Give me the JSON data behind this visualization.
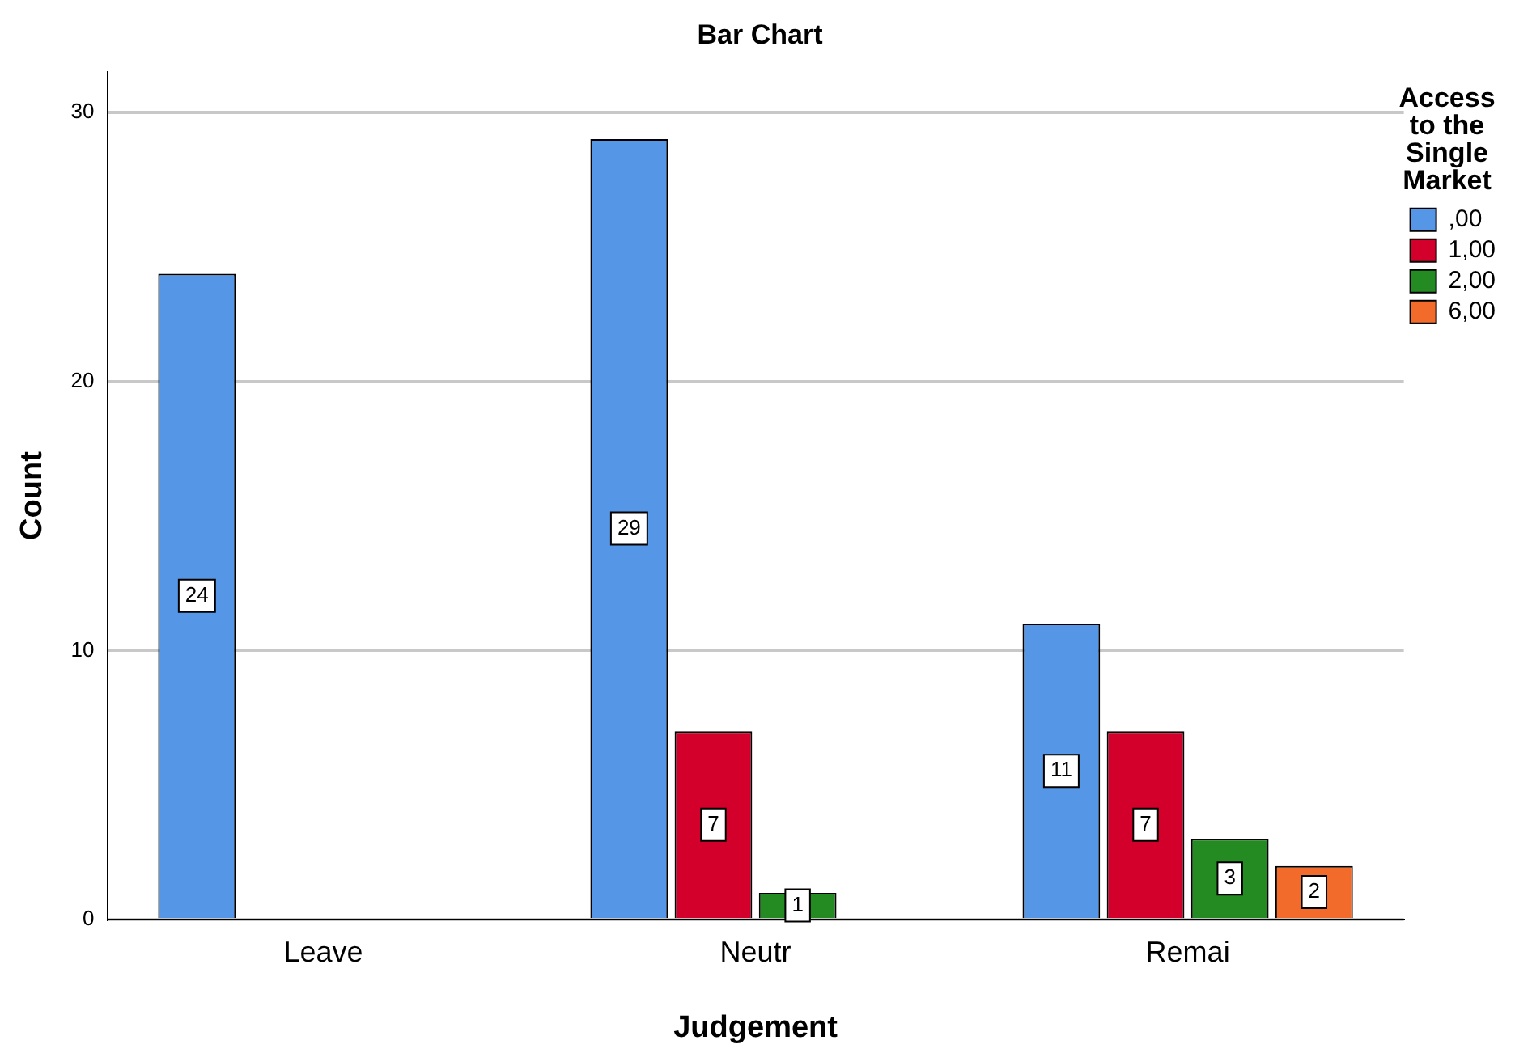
{
  "chart_data": {
    "type": "bar",
    "title": "Bar Chart",
    "xlabel": "Judgement",
    "ylabel": "Count",
    "legend_title": "Access to the Single Market",
    "categories": [
      "Leave",
      "Neutr",
      "Remai"
    ],
    "series": [
      {
        "name": ",00",
        "color": "#5596e6",
        "values": [
          24,
          29,
          11
        ]
      },
      {
        "name": "1,00",
        "color": "#d2002a",
        "values": [
          null,
          7,
          7
        ]
      },
      {
        "name": "2,00",
        "color": "#238b21",
        "values": [
          null,
          1,
          3
        ]
      },
      {
        "name": "6,00",
        "color": "#f26b2a",
        "values": [
          null,
          null,
          2
        ]
      }
    ],
    "ylim": [
      0,
      31.5
    ],
    "yticks": [
      0,
      10,
      20,
      30
    ],
    "grid": "y",
    "legend": "top right",
    "data_labels": true
  }
}
